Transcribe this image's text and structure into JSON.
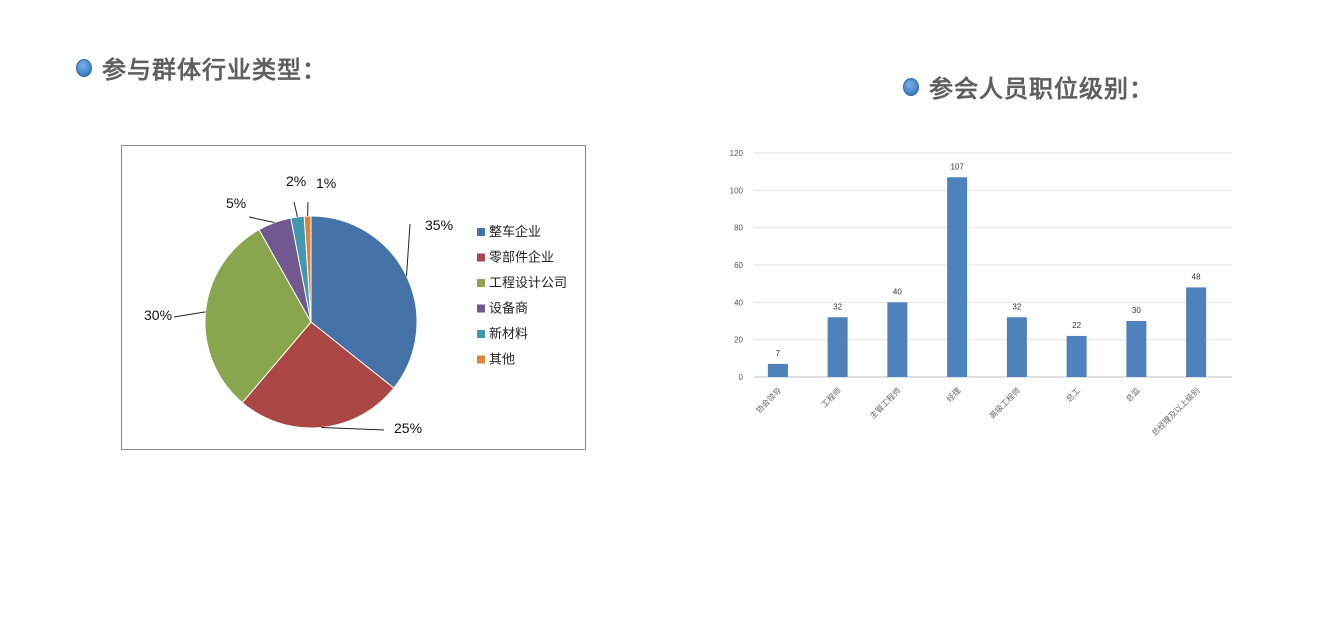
{
  "headings": {
    "left": "参与群体行业类型：",
    "right": "参会人员职位级别："
  },
  "chart_data": [
    {
      "type": "pie",
      "title": "",
      "categories": [
        "整车企业",
        "零部件企业",
        "工程设计公司",
        "设备商",
        "新材料",
        "其他"
      ],
      "values": [
        35,
        25,
        30,
        5,
        2,
        1
      ],
      "labels": [
        "35%",
        "25%",
        "30%",
        "5%",
        "2%",
        "1%"
      ],
      "colors": [
        "#4572a7",
        "#aa4643",
        "#89a54e",
        "#71588f",
        "#4198af",
        "#db843d"
      ],
      "legend": "right"
    },
    {
      "type": "bar",
      "title": "",
      "categories": [
        "协会领导",
        "工程师",
        "主管工程师",
        "经理",
        "高级工程师",
        "总工",
        "总监",
        "总经理及以上级别"
      ],
      "values": [
        7,
        32,
        40,
        107,
        32,
        22,
        30,
        48
      ],
      "ylim": [
        0,
        120
      ],
      "yticks": [
        0,
        20,
        40,
        60,
        80,
        100,
        120
      ],
      "grid": true,
      "color": "#4f81bd",
      "xlabel": "",
      "ylabel": ""
    }
  ]
}
